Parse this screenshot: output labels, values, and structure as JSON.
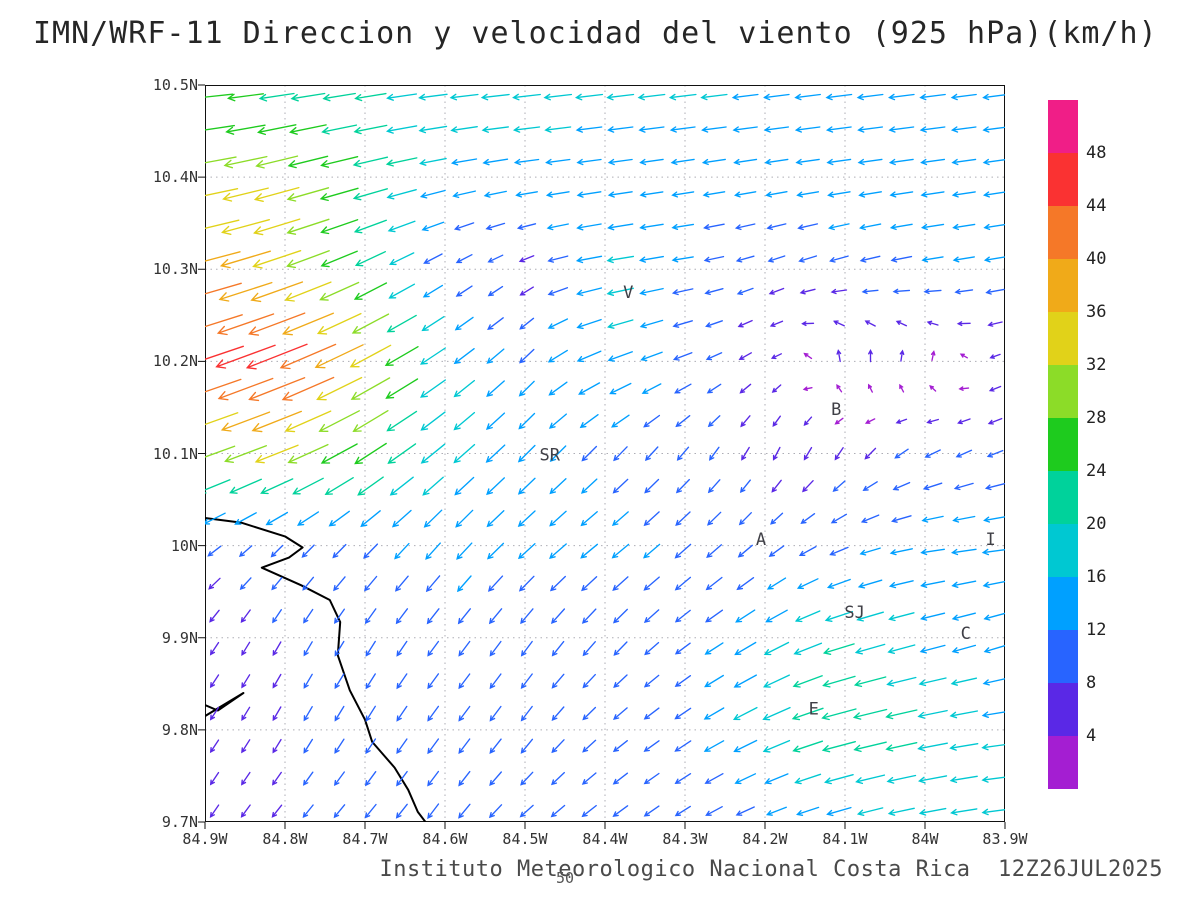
{
  "title": "IMN/WRF-11 Direccion y velocidad del viento (925 hPa)(km/h)",
  "footer": "Instituto Meteorologico Nacional Costa Rica  12Z26JUL2025",
  "bottom_center_label": "50",
  "chart_data": {
    "type": "quiver",
    "description": "Wind direction and speed vector field at 925 hPa (km/h) over central Costa Rica, IMN/WRF-11 model, dotted lat/lon grid, rainbow colorbar at right, coastline at lower left",
    "lon_range": [
      -84.9,
      -83.9
    ],
    "lat_range": [
      9.7,
      10.5
    ],
    "x_axis": {
      "ticks": [
        "84.9W",
        "84.8W",
        "84.7W",
        "84.6W",
        "84.5W",
        "84.4W",
        "84.3W",
        "84.2W",
        "84.1W",
        "84W",
        "83.9W"
      ],
      "values": [
        -84.9,
        -84.8,
        -84.7,
        -84.6,
        -84.5,
        -84.4,
        -84.3,
        -84.2,
        -84.1,
        -84.0,
        -83.9
      ]
    },
    "y_axis": {
      "ticks": [
        "10.5N",
        "10.4N",
        "10.3N",
        "10.2N",
        "10.1N",
        "10N",
        "9.9N",
        "9.8N",
        "9.7N"
      ],
      "values": [
        10.5,
        10.4,
        10.3,
        10.2,
        10.1,
        10.0,
        9.9,
        9.8,
        9.7
      ]
    },
    "grid": "dotted",
    "colorbar": {
      "units": "km/h",
      "levels": [
        4,
        8,
        12,
        16,
        20,
        24,
        28,
        32,
        36,
        40,
        44,
        48
      ],
      "colors": [
        "#a41ed2",
        "#5a28e6",
        "#2864ff",
        "#00a0ff",
        "#00c8d2",
        "#00d29b",
        "#1ecb1e",
        "#8cdc28",
        "#e1d219",
        "#f0aa19",
        "#f57828",
        "#fa3232",
        "#f01e87"
      ]
    },
    "wind_grid": {
      "note": "u,v components in km/h on 0.1 degree grid; rows ordered north to south (lats), cols west to east (lons)",
      "lons": [
        -84.9,
        -84.8,
        -84.7,
        -84.6,
        -84.5,
        -84.4,
        -84.3,
        -84.2,
        -84.1,
        -84.0,
        -83.9
      ],
      "lats": [
        10.5,
        10.4,
        10.3,
        10.2,
        10.1,
        10.0,
        9.9,
        9.8,
        9.7
      ],
      "u": [
        [
          -24,
          -22,
          -20,
          -18,
          -18,
          -17,
          -17,
          -16,
          -16,
          -16,
          -15
        ],
        [
          -32,
          -30,
          -24,
          -15,
          -14,
          -14,
          -13,
          -13,
          -14,
          -14,
          -14
        ],
        [
          -38,
          -34,
          -20,
          -8,
          -6,
          -18,
          -12,
          -8,
          -10,
          -12,
          -12
        ],
        [
          -42,
          -45,
          -30,
          -14,
          -8,
          -16,
          -10,
          -4,
          0,
          2,
          -4
        ],
        [
          -28,
          -30,
          -22,
          -14,
          -10,
          -8,
          -6,
          -3,
          -4,
          -8,
          -8
        ],
        [
          -7,
          -6,
          -8,
          -9,
          -10,
          -10,
          -9,
          -7,
          -10,
          -14,
          -16
        ],
        [
          -4,
          -4,
          -5,
          -6,
          -6,
          -7,
          -8,
          -14,
          -20,
          -15,
          -12
        ],
        [
          -4,
          -4,
          -5,
          -6,
          -6,
          -7,
          -9,
          -17,
          -24,
          -20,
          -16
        ],
        [
          -4,
          -5,
          -6,
          -6,
          -7,
          -8,
          -8,
          -10,
          -14,
          -16,
          -16
        ]
      ],
      "v": [
        [
          -2,
          -3,
          -3,
          -2,
          -2,
          -2,
          -2,
          -2,
          -2,
          -2,
          -2
        ],
        [
          -6,
          -8,
          -6,
          -3,
          -2,
          -2,
          -2,
          -2,
          -2,
          -2,
          -2
        ],
        [
          -10,
          -12,
          -10,
          -5,
          -3,
          -3,
          -2,
          -3,
          -3,
          -2,
          -2
        ],
        [
          -14,
          -18,
          -16,
          -10,
          -8,
          -6,
          -4,
          -3,
          6,
          4,
          -2
        ],
        [
          -10,
          -12,
          -14,
          -12,
          -10,
          -8,
          -7,
          -6,
          -6,
          -4,
          -3
        ],
        [
          -5,
          -6,
          -8,
          -10,
          -9,
          -8,
          -8,
          -6,
          -4,
          -2,
          -2
        ],
        [
          -6,
          -7,
          -8,
          -8,
          -8,
          -8,
          -6,
          -8,
          -6,
          -4,
          -4
        ],
        [
          -6,
          -7,
          -8,
          -8,
          -8,
          -6,
          -6,
          -8,
          -6,
          -4,
          -2
        ],
        [
          -6,
          -6,
          -7,
          -8,
          -6,
          -6,
          -5,
          -4,
          -4,
          -3,
          -2
        ]
      ]
    },
    "cities": [
      {
        "label": "V",
        "lon": -84.371,
        "lat": 10.274
      },
      {
        "label": "SR",
        "lon": -84.469,
        "lat": 10.098
      },
      {
        "label": "B",
        "lon": -84.111,
        "lat": 10.147
      },
      {
        "label": "A",
        "lon": -84.205,
        "lat": 10.006
      },
      {
        "label": "SJ",
        "lon": -84.088,
        "lat": 9.927
      },
      {
        "label": "C",
        "lon": -83.949,
        "lat": 9.904
      },
      {
        "label": "E",
        "lon": -84.139,
        "lat": 9.822
      },
      {
        "label": "I",
        "lon": -83.918,
        "lat": 10.006
      }
    ],
    "coastlines": [
      [
        [
          -84.9,
          10.03
        ],
        [
          -84.855,
          10.025
        ],
        [
          -84.8,
          10.01
        ],
        [
          -84.778,
          9.998
        ],
        [
          -84.795,
          9.987
        ],
        [
          -84.829,
          9.976
        ],
        [
          -84.78,
          9.957
        ],
        [
          -84.744,
          9.941
        ],
        [
          -84.731,
          9.917
        ],
        [
          -84.734,
          9.881
        ],
        [
          -84.719,
          9.843
        ],
        [
          -84.7,
          9.811
        ],
        [
          -84.691,
          9.787
        ],
        [
          -84.663,
          9.759
        ],
        [
          -84.646,
          9.735
        ],
        [
          -84.634,
          9.711
        ],
        [
          -84.62,
          9.695
        ]
      ],
      [
        [
          -84.9,
          9.815
        ],
        [
          -84.852,
          9.84
        ],
        [
          -84.884,
          9.821
        ],
        [
          -84.9,
          9.827
        ]
      ]
    ]
  }
}
